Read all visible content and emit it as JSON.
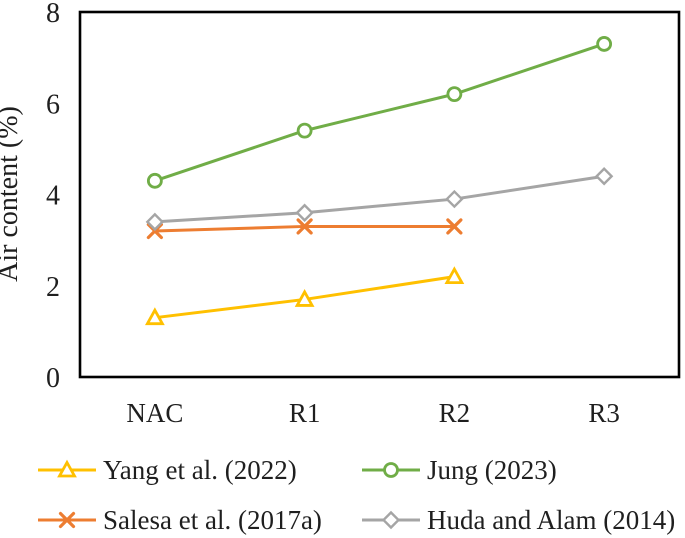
{
  "chart_data": {
    "type": "line",
    "title": "",
    "xlabel": "",
    "ylabel": "Air content (%)",
    "categories": [
      "NAC",
      "R1",
      "R2",
      "R3"
    ],
    "series": [
      {
        "name": "Yang et al. (2022)",
        "marker": "triangle",
        "color": "#FFC000",
        "values": [
          1.3,
          1.7,
          2.2,
          null
        ]
      },
      {
        "name": "Jung (2023)",
        "marker": "circle",
        "color": "#70AD47",
        "values": [
          4.3,
          5.4,
          6.2,
          7.3
        ]
      },
      {
        "name": "Salesa et al. (2017a)",
        "marker": "x",
        "color": "#ED7D31",
        "values": [
          3.2,
          3.3,
          3.3,
          null
        ]
      },
      {
        "name": "Huda and Alam (2014)",
        "marker": "diamond",
        "color": "#A5A5A5",
        "values": [
          3.4,
          3.6,
          3.9,
          4.4
        ]
      }
    ],
    "ylim": [
      0,
      8
    ],
    "yticks": [
      0,
      2,
      4,
      6,
      8
    ],
    "grid": false,
    "legend_position": "bottom",
    "axis_color": "#000000",
    "text_color": "#1f1f1f"
  }
}
